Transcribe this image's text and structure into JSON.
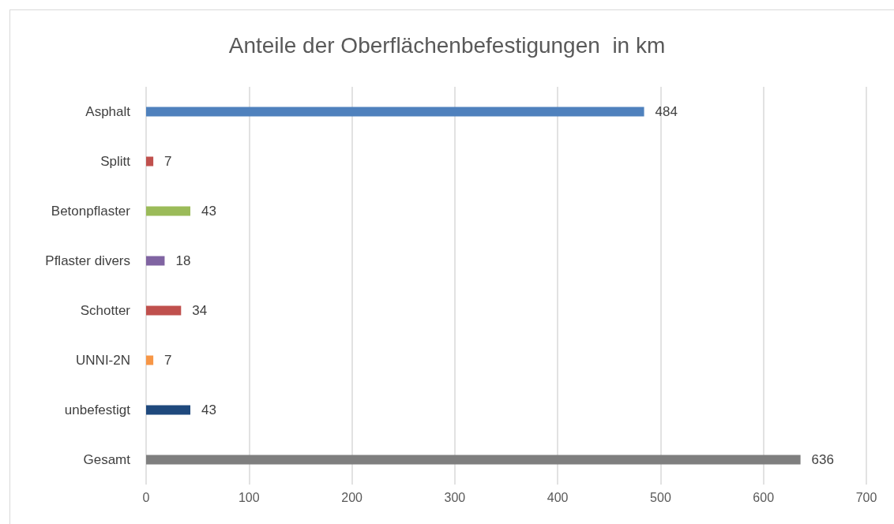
{
  "chart_data": {
    "type": "bar",
    "orientation": "horizontal",
    "title": "Anteile der Oberflächenbefestigungen  in km",
    "categories": [
      "Asphalt",
      "Splitt",
      "Betonpflaster",
      "Pflaster divers",
      "Schotter",
      "UNNI-2N",
      "unbefestigt",
      "Gesamt"
    ],
    "values": [
      484,
      7,
      43,
      18,
      34,
      7,
      43,
      636
    ],
    "colors": [
      "#4f81bd",
      "#c0504d",
      "#9bbb59",
      "#8064a2",
      "#c0504d",
      "#f79646",
      "#1f497d",
      "#7f7f7f"
    ],
    "xlim": [
      0,
      700
    ],
    "xticks": [
      0,
      100,
      200,
      300,
      400,
      500,
      600,
      700
    ],
    "grid": "x",
    "data_labels": true
  }
}
